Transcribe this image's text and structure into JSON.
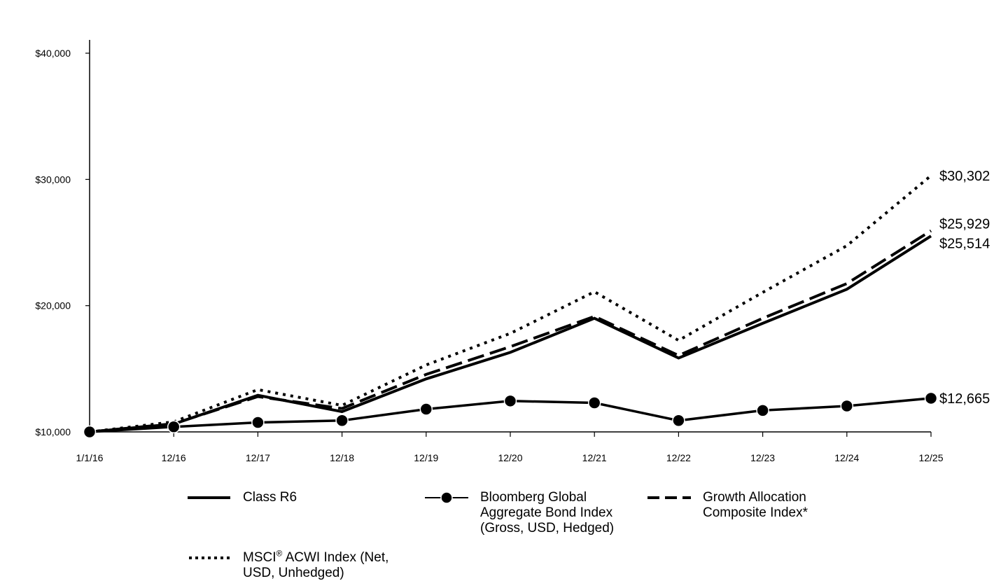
{
  "chart_data": {
    "type": "line",
    "title": "",
    "xlabel": "",
    "ylabel": "",
    "categories": [
      "1/1/16",
      "12/16",
      "12/17",
      "12/18",
      "12/19",
      "12/20",
      "12/21",
      "12/22",
      "12/23",
      "12/24",
      "12/25"
    ],
    "ylim": [
      10000,
      40000
    ],
    "yticks": [
      10000,
      20000,
      30000,
      40000
    ],
    "ytick_labels": [
      "$10,000",
      "$20,000",
      "$30,000",
      "$40,000"
    ],
    "grid": false,
    "legend_position": "bottom",
    "series": [
      {
        "name": "Class R6",
        "style": "solid",
        "values": [
          10000,
          10620,
          12900,
          11600,
          14200,
          16300,
          19000,
          15850,
          18600,
          21300,
          25514
        ],
        "end_label": "$25,514"
      },
      {
        "name": "Bloomberg Global Aggregate Bond Index (Gross, USD, Hedged)",
        "style": "solid-markers",
        "values": [
          10000,
          10400,
          10750,
          10900,
          11800,
          12450,
          12300,
          10900,
          11700,
          12050,
          12665
        ],
        "end_label": "$12,665"
      },
      {
        "name": "Growth Allocation Composite Index*",
        "style": "dashed",
        "values": [
          10000,
          10650,
          12800,
          11850,
          14550,
          16750,
          19150,
          16050,
          19000,
          21750,
          25929
        ],
        "end_label": "$25,929"
      },
      {
        "name": "MSCI® ACWI Index (Net, USD, Unhedged)",
        "style": "dotted",
        "values": [
          10000,
          10800,
          13350,
          12100,
          15300,
          17800,
          21100,
          17250,
          21050,
          24750,
          30302
        ],
        "end_label": "$30,302"
      }
    ]
  },
  "legend": {
    "class_r6": "Class R6",
    "bloomberg_line1": "Bloomberg Global",
    "bloomberg_line2": "Aggregate Bond Index",
    "bloomberg_line3": "(Gross, USD, Hedged)",
    "growth_line1": "Growth Allocation",
    "growth_line2": "Composite Index*",
    "msci_prefix": "MSCI",
    "msci_reg": "®",
    "msci_line1_rest": " ACWI Index (Net,",
    "msci_line2": "USD, Unhedged)"
  }
}
